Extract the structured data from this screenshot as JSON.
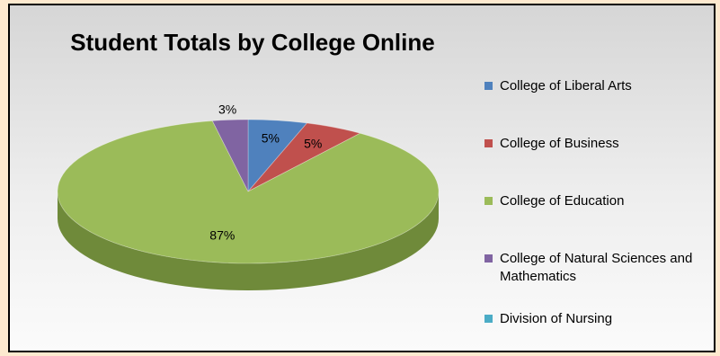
{
  "chart_data": {
    "type": "pie",
    "title": "Student Totals by College Online",
    "legend_position": "right",
    "slices": [
      {
        "name": "College of Liberal Arts",
        "value": 5,
        "label": "5%",
        "color": "#4f81bd",
        "side_color": "#38608f"
      },
      {
        "name": "College of Business",
        "value": 5,
        "label": "5%",
        "color": "#c0504d",
        "side_color": "#8f3432"
      },
      {
        "name": "College of Education",
        "value": 87,
        "label": "87%",
        "color": "#9bbb59",
        "side_color": "#6f8a3a"
      },
      {
        "name": "College of Natural Sciences and Mathematics",
        "value": 3,
        "label": "3%",
        "color": "#8064a2",
        "side_color": "#5c4677"
      },
      {
        "name": "Division of Nursing",
        "value": 0,
        "label": "",
        "color": "#4bacc6",
        "side_color": "#34819a"
      }
    ]
  }
}
